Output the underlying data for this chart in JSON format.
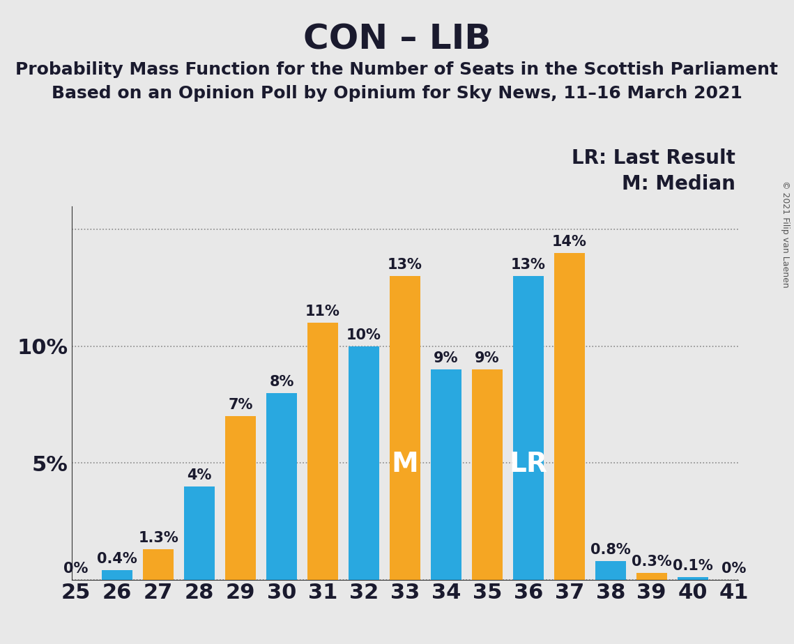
{
  "title": "CON – LIB",
  "subtitle1": "Probability Mass Function for the Number of Seats in the Scottish Parliament",
  "subtitle2": "Based on an Opinion Poll by Opinium for Sky News, 11–16 March 2021",
  "copyright": "© 2021 Filip van Laenen",
  "background_color": "#e8e8e8",
  "bar_color_blue": "#29a8e0",
  "bar_color_orange": "#f5a623",
  "categories": [
    25,
    26,
    27,
    28,
    29,
    30,
    31,
    32,
    33,
    34,
    35,
    36,
    37,
    38,
    39,
    40,
    41
  ],
  "blue_values": [
    0.0,
    0.4,
    0.0,
    4.0,
    0.0,
    8.0,
    0.0,
    10.0,
    0.0,
    9.0,
    0.0,
    13.0,
    0.0,
    0.8,
    0.0,
    0.1,
    0.0
  ],
  "orange_values": [
    0.0,
    0.0,
    1.3,
    0.0,
    7.0,
    0.0,
    11.0,
    0.0,
    13.0,
    0.0,
    9.0,
    0.0,
    14.0,
    0.0,
    0.3,
    0.0,
    0.0
  ],
  "blue_labels": [
    "0%",
    "0.4%",
    "",
    "4%",
    "",
    "8%",
    "",
    "10%",
    "",
    "9%",
    "",
    "13%",
    "",
    "0.8%",
    "",
    "0.1%",
    "0%"
  ],
  "orange_labels": [
    "",
    "",
    "1.3%",
    "",
    "7%",
    "",
    "11%",
    "",
    "13%",
    "",
    "9%",
    "",
    "14%",
    "",
    "0.3%",
    "",
    ""
  ],
  "median_seat": 33,
  "lr_seat": 36,
  "ylim": [
    0,
    16
  ],
  "title_fontsize": 36,
  "subtitle_fontsize": 18,
  "axis_fontsize": 22,
  "bar_label_fontsize": 15,
  "legend_fontsize": 20,
  "marker_fontsize": 28,
  "text_color": "#1a1a2e"
}
